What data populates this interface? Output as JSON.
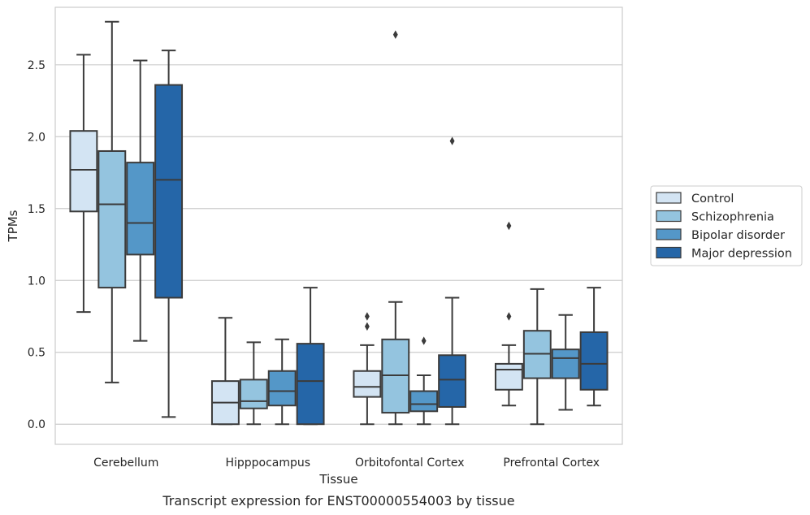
{
  "chart_data": {
    "type": "box",
    "title": "",
    "xlabel": "Tissue",
    "ylabel": "TPMs",
    "caption": "Transcript expression for ENST00000554003 by tissue",
    "ylim": [
      -0.14,
      2.9
    ],
    "yticks": [
      0.0,
      0.5,
      1.0,
      1.5,
      2.0,
      2.5
    ],
    "ytick_labels": [
      "0.0",
      "0.5",
      "1.0",
      "1.5",
      "2.0",
      "2.5"
    ],
    "grid": true,
    "legend_placement": "right",
    "categories": [
      "Cerebellum",
      "Hipppocampus",
      "Orbitofontal Cortex",
      "Prefrontal Cortex"
    ],
    "series": [
      {
        "name": "Control",
        "color": "#d3e4f3",
        "boxes": [
          {
            "whisker_low": 0.78,
            "q1": 1.48,
            "median": 1.77,
            "q3": 2.04,
            "whisker_high": 2.57,
            "outliers": []
          },
          {
            "whisker_low": 0.0,
            "q1": 0.0,
            "median": 0.15,
            "q3": 0.3,
            "whisker_high": 0.74,
            "outliers": []
          },
          {
            "whisker_low": 0.0,
            "q1": 0.19,
            "median": 0.26,
            "q3": 0.37,
            "whisker_high": 0.55,
            "outliers": [
              0.68,
              0.75
            ]
          },
          {
            "whisker_low": 0.13,
            "q1": 0.24,
            "median": 0.38,
            "q3": 0.42,
            "whisker_high": 0.55,
            "outliers": [
              0.75,
              1.38
            ]
          }
        ]
      },
      {
        "name": "Schizophrenia",
        "color": "#94c4df",
        "boxes": [
          {
            "whisker_low": 0.29,
            "q1": 0.95,
            "median": 1.53,
            "q3": 1.9,
            "whisker_high": 2.8,
            "outliers": []
          },
          {
            "whisker_low": 0.0,
            "q1": 0.11,
            "median": 0.16,
            "q3": 0.31,
            "whisker_high": 0.57,
            "outliers": []
          },
          {
            "whisker_low": 0.0,
            "q1": 0.08,
            "median": 0.34,
            "q3": 0.59,
            "whisker_high": 0.85,
            "outliers": [
              2.71
            ]
          },
          {
            "whisker_low": 0.0,
            "q1": 0.32,
            "median": 0.49,
            "q3": 0.65,
            "whisker_high": 0.94,
            "outliers": []
          }
        ]
      },
      {
        "name": "Bipolar disorder",
        "color": "#5497c8",
        "boxes": [
          {
            "whisker_low": 0.58,
            "q1": 1.18,
            "median": 1.4,
            "q3": 1.82,
            "whisker_high": 2.53,
            "outliers": []
          },
          {
            "whisker_low": 0.0,
            "q1": 0.13,
            "median": 0.23,
            "q3": 0.37,
            "whisker_high": 0.59,
            "outliers": []
          },
          {
            "whisker_low": 0.0,
            "q1": 0.09,
            "median": 0.14,
            "q3": 0.23,
            "whisker_high": 0.34,
            "outliers": [
              0.58
            ]
          },
          {
            "whisker_low": 0.1,
            "q1": 0.32,
            "median": 0.46,
            "q3": 0.52,
            "whisker_high": 0.76,
            "outliers": []
          }
        ]
      },
      {
        "name": "Major depression",
        "color": "#2566a8",
        "boxes": [
          {
            "whisker_low": 0.05,
            "q1": 0.88,
            "median": 1.7,
            "q3": 2.36,
            "whisker_high": 2.6,
            "outliers": []
          },
          {
            "whisker_low": 0.0,
            "q1": 0.0,
            "median": 0.3,
            "q3": 0.56,
            "whisker_high": 0.95,
            "outliers": []
          },
          {
            "whisker_low": 0.0,
            "q1": 0.12,
            "median": 0.31,
            "q3": 0.48,
            "whisker_high": 0.88,
            "outliers": [
              1.97
            ]
          },
          {
            "whisker_low": 0.13,
            "q1": 0.24,
            "median": 0.42,
            "q3": 0.64,
            "whisker_high": 0.95,
            "outliers": []
          }
        ]
      }
    ]
  }
}
